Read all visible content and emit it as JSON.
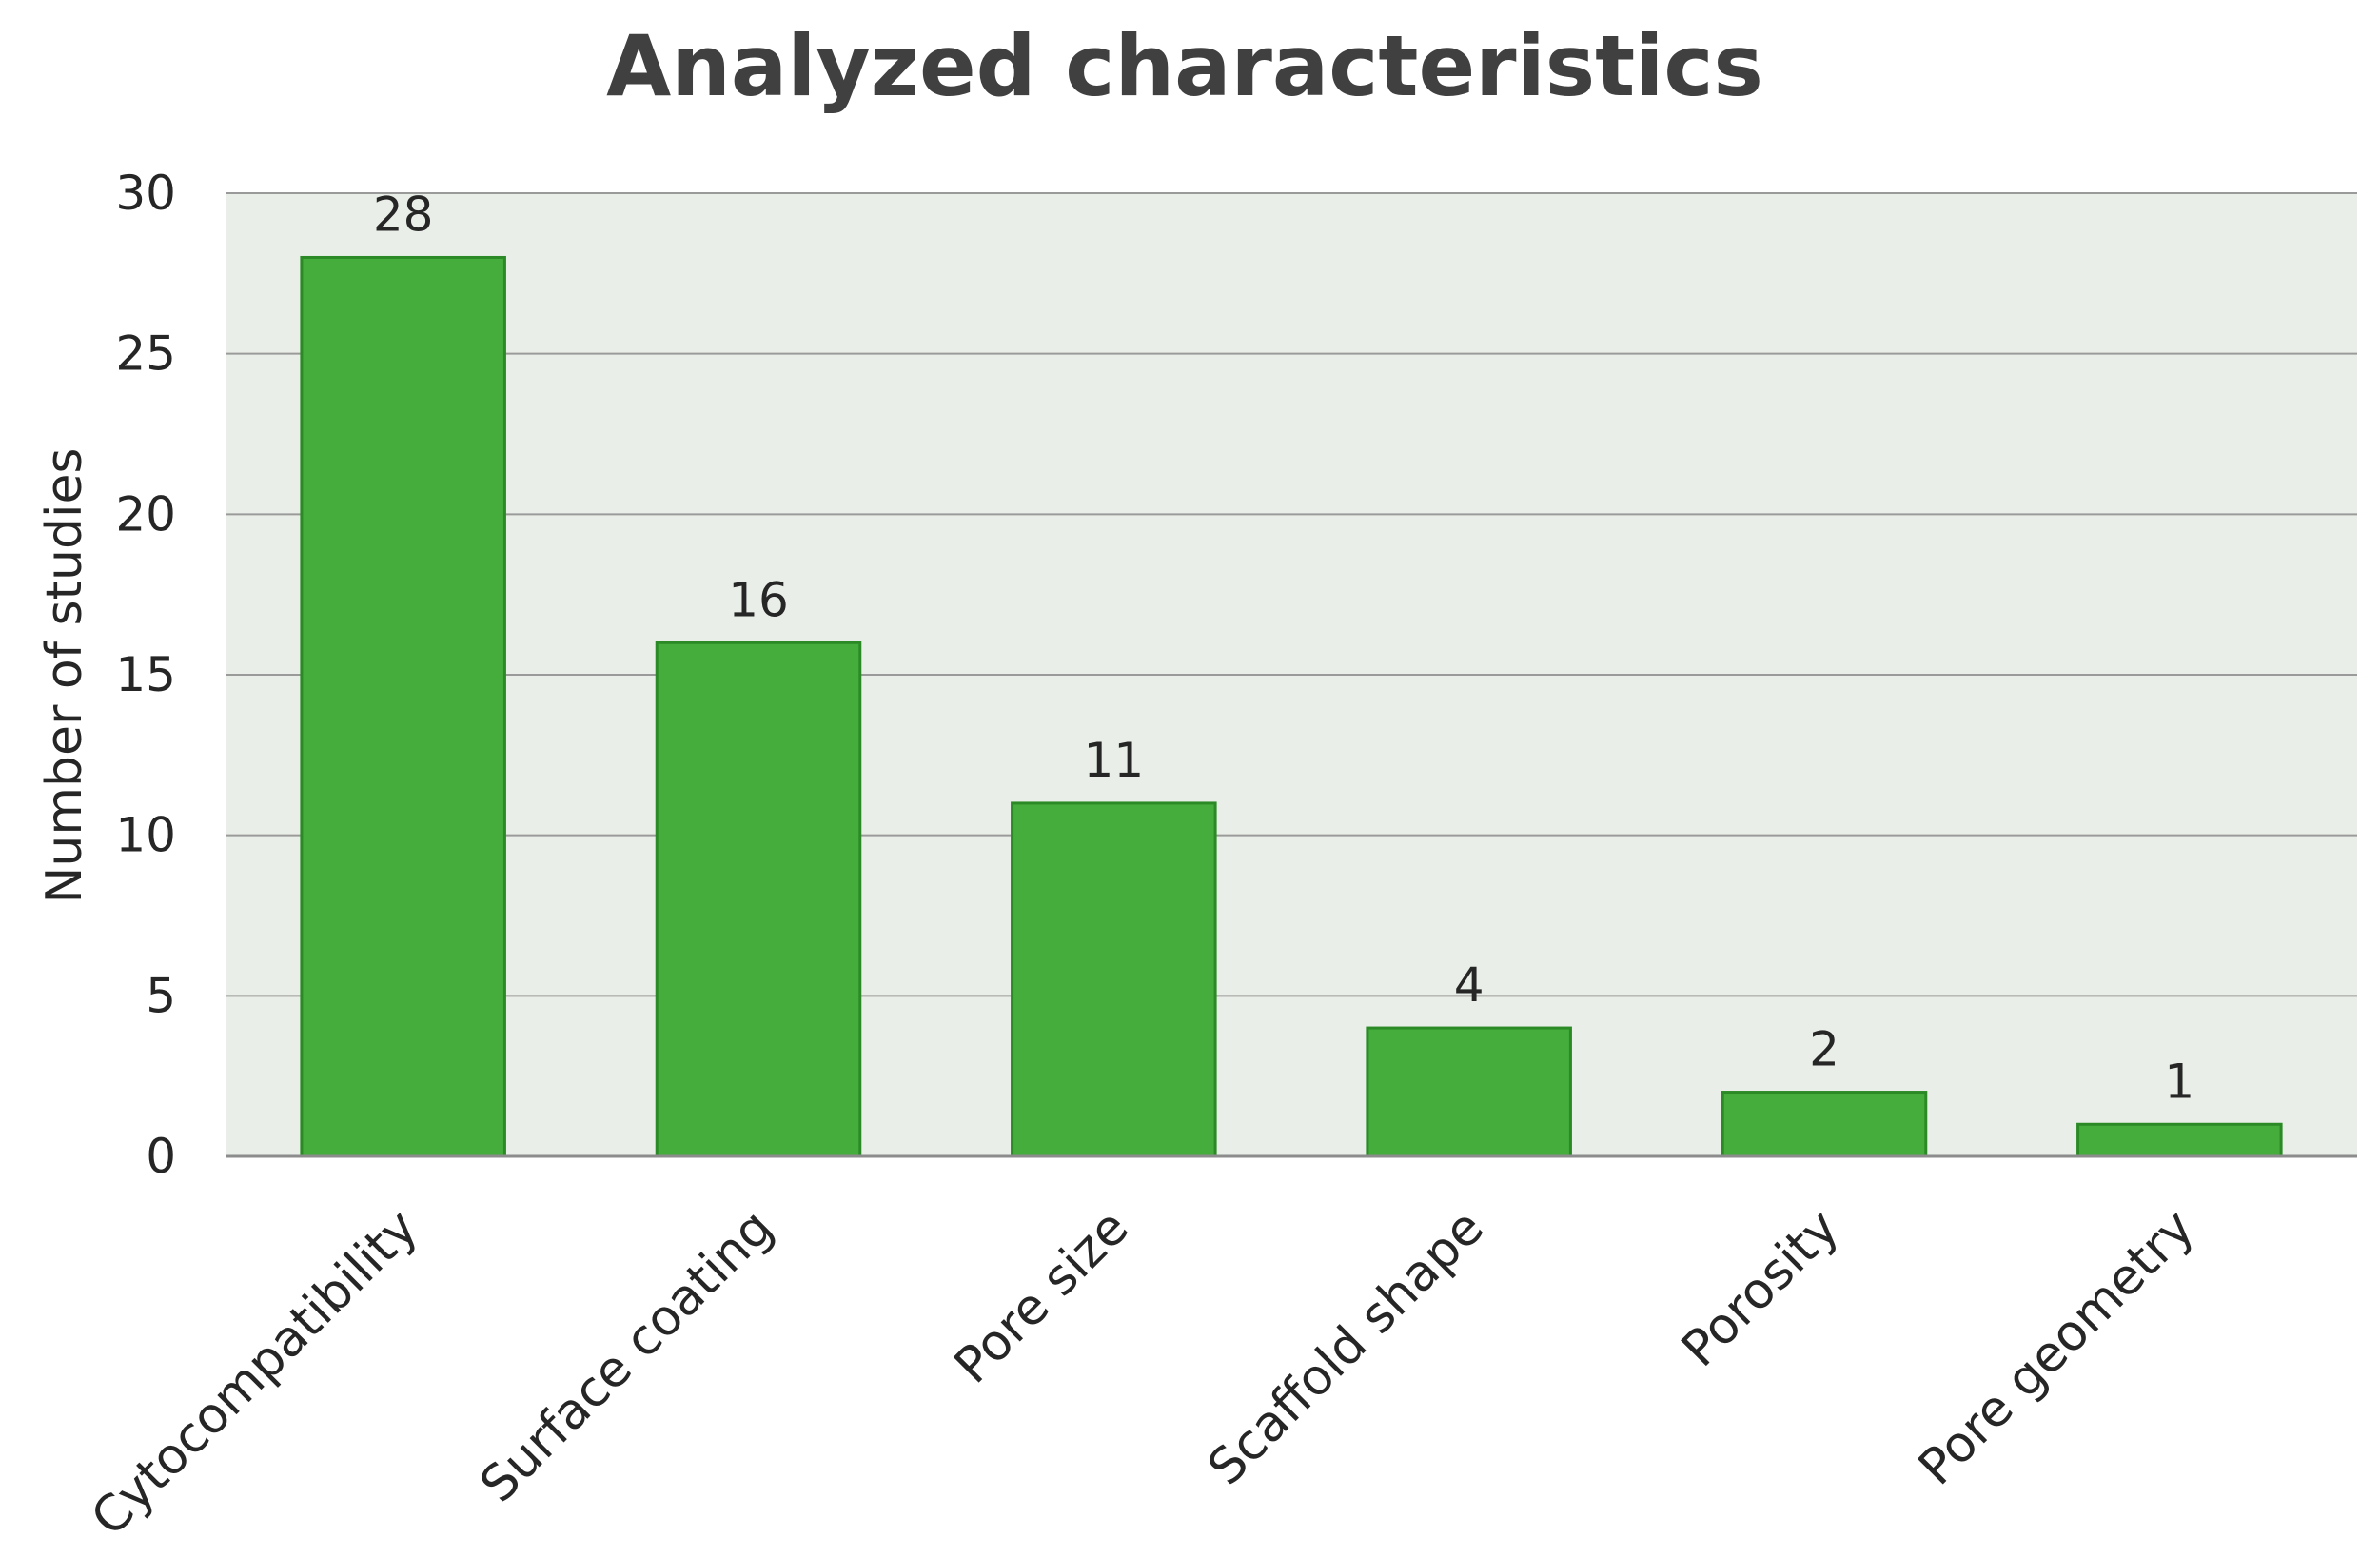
{
  "chart_data": {
    "type": "bar",
    "title": "Analyzed characteristics",
    "xlabel": "",
    "ylabel": "Number of studies",
    "categories": [
      "Cytocompatibility",
      "Surface coating",
      "Pore size",
      "Scaffold shape",
      "Porosity",
      "Pore geometry"
    ],
    "values": [
      28,
      16,
      11,
      4,
      2,
      1
    ],
    "data_labels": [
      "28",
      "16",
      "11",
      "4",
      "2",
      "1"
    ],
    "ylim": [
      0,
      30
    ],
    "yticks": [
      0,
      5,
      10,
      15,
      20,
      25,
      30
    ],
    "grid": true,
    "legend": "none",
    "colors": {
      "bar_fill": "#44ad3c",
      "bar_stroke": "#2c8a26",
      "plot_background": "#e9efe8",
      "gridline": "#9a9a9a",
      "axis_line": "#8c8c8c",
      "title_text": "#404040",
      "text": "#262626"
    }
  }
}
